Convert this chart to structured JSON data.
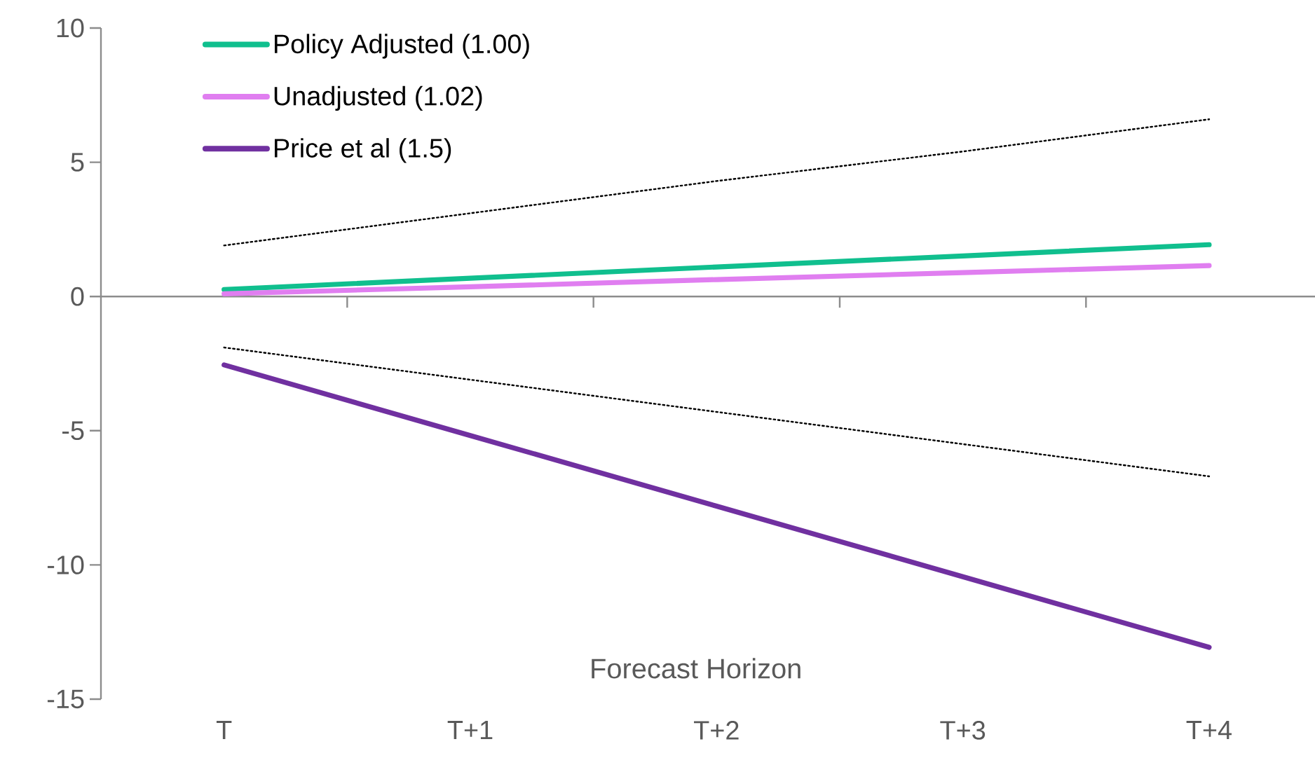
{
  "chart_data": {
    "type": "line",
    "xlabel": "Forecast Horizon",
    "categories": [
      "T",
      "T+1",
      "T+2",
      "T+3",
      "T+4"
    ],
    "series": [
      {
        "name": "Policy Adjusted (1.00)",
        "color": "#10bf8e",
        "values": [
          0.26,
          0.68,
          1.1,
          1.51,
          1.93
        ]
      },
      {
        "name": "Unadjusted (1.02)",
        "color": "#e07ef0",
        "values": [
          0.1,
          0.36,
          0.63,
          0.89,
          1.15
        ]
      },
      {
        "name": "Price et al (1.5)",
        "color": "#7030a0",
        "values": [
          -2.55,
          -5.18,
          -7.81,
          -10.44,
          -13.07
        ]
      },
      {
        "color": "#000000",
        "line_style": "dotted",
        "values": [
          1.9,
          3.1,
          4.3,
          5.4,
          6.6
        ]
      },
      {
        "color": "#000000",
        "line_style": "dotted",
        "values": [
          -1.9,
          -3.1,
          -4.3,
          -5.5,
          -6.7
        ]
      }
    ],
    "ylim": [
      -15,
      10
    ],
    "yticks": [
      -15,
      -10,
      -5,
      0,
      5,
      10
    ],
    "legend": "top left"
  }
}
